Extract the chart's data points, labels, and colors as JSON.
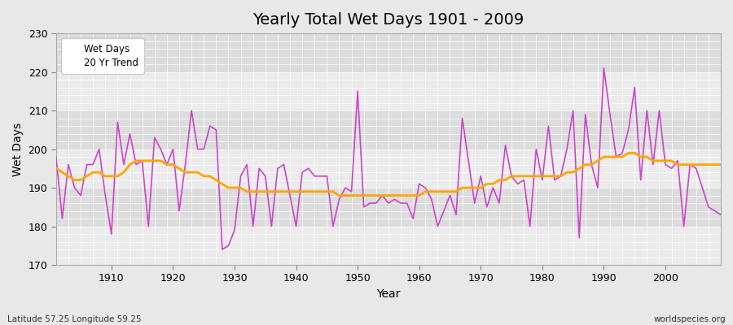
{
  "title": "Yearly Total Wet Days 1901 - 2009",
  "xlabel": "Year",
  "ylabel": "Wet Days",
  "footer_left": "Latitude 57.25 Longitude 59.25",
  "footer_right": "worldspecies.org",
  "ylim": [
    170,
    230
  ],
  "xlim": [
    1901,
    2009
  ],
  "yticks": [
    170,
    180,
    190,
    200,
    210,
    220,
    230
  ],
  "xticks": [
    1910,
    1920,
    1930,
    1940,
    1950,
    1960,
    1970,
    1980,
    1990,
    2000
  ],
  "wet_days_color": "#CC44CC",
  "trend_color": "#FFA500",
  "bg_color": "#E8E8E8",
  "plot_bg_light": "#EBEBEB",
  "plot_bg_dark": "#DCDCDC",
  "grid_color": "#FFFFFF",
  "wet_days": {
    "1901": 198,
    "1902": 182,
    "1903": 196,
    "1904": 190,
    "1905": 188,
    "1906": 196,
    "1907": 196,
    "1908": 200,
    "1909": 188,
    "1910": 178,
    "1911": 207,
    "1912": 196,
    "1913": 204,
    "1914": 196,
    "1915": 197,
    "1916": 180,
    "1917": 203,
    "1918": 200,
    "1919": 196,
    "1920": 200,
    "1921": 184,
    "1922": 196,
    "1923": 210,
    "1924": 200,
    "1925": 200,
    "1926": 206,
    "1927": 205,
    "1928": 174,
    "1929": 175,
    "1930": 179,
    "1931": 193,
    "1932": 196,
    "1933": 180,
    "1934": 195,
    "1935": 193,
    "1936": 180,
    "1937": 195,
    "1938": 196,
    "1939": 188,
    "1940": 180,
    "1941": 194,
    "1942": 195,
    "1943": 193,
    "1944": 193,
    "1945": 193,
    "1946": 180,
    "1947": 187,
    "1948": 190,
    "1949": 189,
    "1950": 215,
    "1951": 185,
    "1952": 186,
    "1953": 186,
    "1954": 188,
    "1955": 186,
    "1956": 187,
    "1957": 186,
    "1958": 186,
    "1959": 182,
    "1960": 191,
    "1961": 190,
    "1962": 187,
    "1963": 180,
    "1964": 184,
    "1965": 188,
    "1966": 183,
    "1967": 208,
    "1968": 197,
    "1969": 186,
    "1970": 193,
    "1971": 185,
    "1972": 190,
    "1973": 186,
    "1974": 201,
    "1975": 193,
    "1976": 191,
    "1977": 192,
    "1978": 180,
    "1979": 200,
    "1980": 192,
    "1981": 206,
    "1982": 192,
    "1983": 193,
    "1984": 200,
    "1985": 210,
    "1986": 177,
    "1987": 209,
    "1988": 196,
    "1989": 190,
    "1990": 221,
    "1991": 209,
    "1992": 198,
    "1993": 199,
    "1994": 205,
    "1995": 216,
    "1996": 192,
    "1997": 210,
    "1998": 196,
    "1999": 210,
    "2000": 196,
    "2001": 195,
    "2002": 197,
    "2003": 180,
    "2004": 196,
    "2005": 195,
    "2006": 190,
    "2007": 185,
    "2008": 184,
    "2009": 183
  },
  "trend": {
    "1901": 195,
    "1902": 194,
    "1903": 193,
    "1904": 192,
    "1905": 192,
    "1906": 193,
    "1907": 194,
    "1908": 194,
    "1909": 193,
    "1910": 193,
    "1911": 193,
    "1912": 194,
    "1913": 196,
    "1914": 197,
    "1915": 197,
    "1916": 197,
    "1917": 197,
    "1918": 197,
    "1919": 196,
    "1920": 196,
    "1921": 195,
    "1922": 194,
    "1923": 194,
    "1924": 194,
    "1925": 193,
    "1926": 193,
    "1927": 192,
    "1928": 191,
    "1929": 190,
    "1930": 190,
    "1931": 190,
    "1932": 189,
    "1933": 189,
    "1934": 189,
    "1935": 189,
    "1936": 189,
    "1937": 189,
    "1938": 189,
    "1939": 189,
    "1940": 189,
    "1941": 189,
    "1942": 189,
    "1943": 189,
    "1944": 189,
    "1945": 189,
    "1946": 189,
    "1947": 188,
    "1948": 188,
    "1949": 188,
    "1950": 188,
    "1951": 188,
    "1952": 188,
    "1953": 188,
    "1954": 188,
    "1955": 188,
    "1956": 188,
    "1957": 188,
    "1958": 188,
    "1959": 188,
    "1960": 188,
    "1961": 189,
    "1962": 189,
    "1963": 189,
    "1964": 189,
    "1965": 189,
    "1966": 189,
    "1967": 190,
    "1968": 190,
    "1969": 190,
    "1970": 190,
    "1971": 191,
    "1972": 191,
    "1973": 192,
    "1974": 192,
    "1975": 193,
    "1976": 193,
    "1977": 193,
    "1978": 193,
    "1979": 193,
    "1980": 193,
    "1981": 193,
    "1982": 193,
    "1983": 193,
    "1984": 194,
    "1985": 194,
    "1986": 195,
    "1987": 196,
    "1988": 196,
    "1989": 197,
    "1990": 198,
    "1991": 198,
    "1992": 198,
    "1993": 198,
    "1994": 199,
    "1995": 199,
    "1996": 198,
    "1997": 198,
    "1998": 197,
    "1999": 197,
    "2000": 197,
    "2001": 197,
    "2002": 196,
    "2003": 196,
    "2004": 196,
    "2005": 196,
    "2006": 196,
    "2007": 196,
    "2008": 196,
    "2009": 196
  }
}
